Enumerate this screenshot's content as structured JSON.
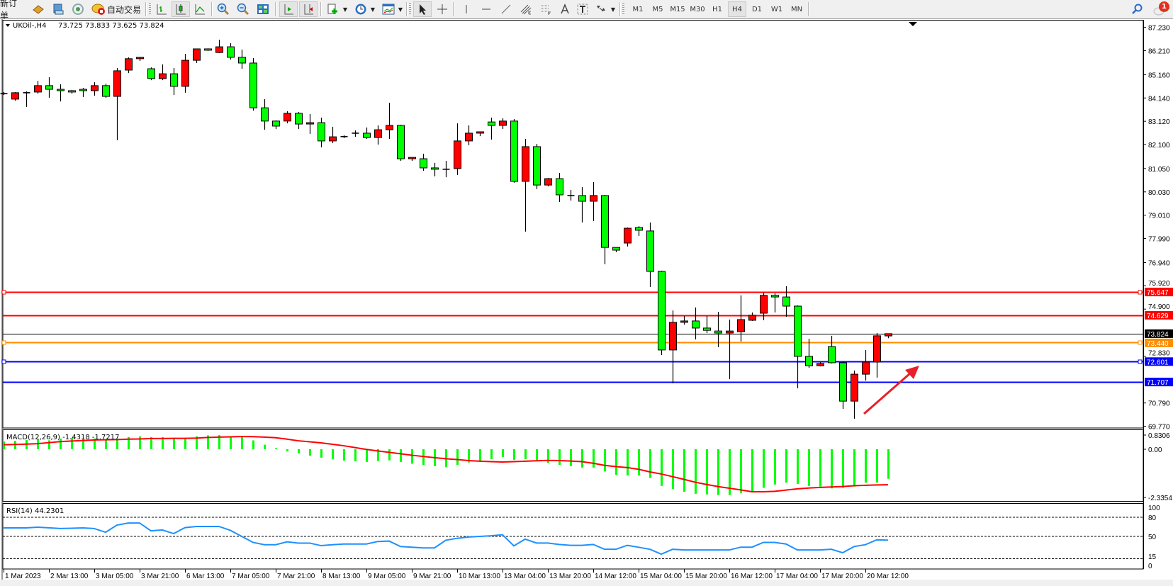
{
  "toolbar": {
    "new_order": "新订单",
    "auto_trading": "自动交易",
    "timeframes": [
      "M1",
      "M5",
      "M15",
      "M30",
      "H1",
      "H4",
      "D1",
      "W1",
      "MN"
    ],
    "active_timeframe": "H4",
    "notification_count": "1",
    "icons": [
      "navigator-book-icon",
      "terminal-icon",
      "signals-icon",
      "auto-trading-icon",
      "bar-chart-icon",
      "candlestick-icon",
      "line-chart-icon",
      "zoom-in-icon",
      "zoom-out-icon",
      "tile-windows-icon",
      "auto-scroll-icon",
      "chart-shift-icon",
      "indicators-icon",
      "periods-clock-icon",
      "templates-icon",
      "cursor-icon",
      "crosshair-icon",
      "vertical-line-icon",
      "horizontal-line-icon",
      "trendline-icon",
      "fibonacci-channel-icon",
      "fibonacci-retracement-icon",
      "text-icon",
      "text-label-icon",
      "arrows-icon",
      "search-icon",
      "chat-icon"
    ]
  },
  "chart": {
    "symbol_label": "UKOil-,H4",
    "ohlc_label": "73.725 73.833 73.625 73.824"
  },
  "colors": {
    "bull_candle": "#ff0000",
    "bear_candle": "#00ff00",
    "candle_outline": "#000000",
    "macd_histogram": "#00ff00",
    "macd_signal": "#ff0000",
    "rsi_line": "#1e90ff",
    "arrow": "#e8202a"
  },
  "chart_data": {
    "type": "candlestick",
    "symbol": "UKOil-",
    "timeframe": "H4",
    "candle_fields": [
      "open",
      "high",
      "low",
      "close"
    ],
    "candles": [
      [
        84.33,
        84.4,
        84.27,
        84.33
      ],
      [
        84.09,
        84.4,
        84.02,
        84.37
      ],
      [
        84.37,
        84.43,
        83.75,
        84.37
      ],
      [
        84.4,
        84.89,
        84.33,
        84.68
      ],
      [
        84.68,
        85.05,
        84.15,
        84.52
      ],
      [
        84.52,
        84.74,
        83.99,
        84.46
      ],
      [
        84.46,
        84.49,
        84.33,
        84.4
      ],
      [
        84.52,
        84.58,
        84.18,
        84.46
      ],
      [
        84.46,
        84.83,
        84.24,
        84.68
      ],
      [
        84.68,
        84.77,
        84.15,
        84.21
      ],
      [
        84.21,
        85.45,
        82.29,
        85.33
      ],
      [
        85.36,
        85.92,
        85.23,
        85.86
      ],
      [
        85.86,
        85.94,
        85.76,
        85.92
      ],
      [
        85.42,
        85.48,
        84.92,
        84.99
      ],
      [
        84.99,
        85.61,
        84.92,
        85.2
      ],
      [
        85.2,
        85.45,
        84.27,
        84.65
      ],
      [
        84.65,
        86.07,
        84.37,
        85.79
      ],
      [
        85.79,
        86.29,
        85.67,
        86.29
      ],
      [
        86.29,
        86.31,
        86.2,
        86.23
      ],
      [
        86.13,
        86.69,
        86.1,
        86.38
      ],
      [
        86.38,
        86.54,
        85.82,
        85.92
      ],
      [
        85.92,
        86.26,
        85.42,
        85.67
      ],
      [
        85.67,
        85.89,
        83.59,
        83.71
      ],
      [
        83.71,
        84.09,
        82.75,
        83.13
      ],
      [
        83.13,
        83.16,
        82.78,
        82.91
      ],
      [
        83.13,
        83.56,
        83.03,
        83.47
      ],
      [
        83.47,
        83.53,
        82.78,
        83.0
      ],
      [
        83.0,
        83.44,
        82.57,
        83.06
      ],
      [
        83.06,
        83.28,
        81.98,
        82.26
      ],
      [
        82.26,
        82.88,
        82.16,
        82.44
      ],
      [
        82.45,
        82.51,
        82.38,
        82.43
      ],
      [
        82.6,
        82.72,
        82.44,
        82.6
      ],
      [
        82.6,
        82.85,
        82.35,
        82.41
      ],
      [
        82.41,
        82.94,
        82.1,
        82.75
      ],
      [
        82.75,
        83.93,
        82.35,
        82.94
      ],
      [
        82.94,
        82.97,
        81.39,
        81.48
      ],
      [
        81.48,
        81.54,
        81.39,
        81.54
      ],
      [
        81.48,
        81.7,
        80.95,
        81.08
      ],
      [
        81.08,
        81.3,
        80.71,
        81.02
      ],
      [
        81.02,
        81.39,
        80.67,
        81.02
      ],
      [
        81.05,
        83.03,
        80.77,
        82.26
      ],
      [
        82.26,
        82.94,
        82.07,
        82.6
      ],
      [
        82.6,
        82.66,
        82.47,
        82.66
      ],
      [
        83.09,
        83.28,
        82.32,
        82.94
      ],
      [
        82.94,
        83.25,
        82.78,
        83.13
      ],
      [
        83.13,
        83.22,
        80.43,
        80.49
      ],
      [
        80.49,
        82.35,
        78.29,
        82.01
      ],
      [
        82.01,
        82.13,
        80.15,
        80.33
      ],
      [
        80.33,
        80.64,
        80.27,
        80.61
      ],
      [
        80.61,
        80.86,
        79.59,
        79.9
      ],
      [
        79.87,
        80.12,
        79.65,
        79.87
      ],
      [
        79.87,
        80.24,
        78.69,
        79.62
      ],
      [
        79.62,
        80.46,
        78.75,
        79.87
      ],
      [
        79.87,
        79.9,
        76.86,
        77.6
      ],
      [
        77.6,
        77.6,
        77.39,
        77.48
      ],
      [
        77.79,
        78.47,
        77.64,
        78.44
      ],
      [
        78.47,
        78.53,
        78.1,
        78.35
      ],
      [
        78.32,
        78.69,
        75.87,
        76.55
      ],
      [
        76.55,
        76.58,
        72.89,
        73.11
      ],
      [
        73.11,
        74.84,
        71.65,
        74.32
      ],
      [
        74.32,
        74.6,
        74.22,
        74.38
      ],
      [
        74.38,
        74.97,
        73.57,
        74.07
      ],
      [
        74.07,
        74.6,
        73.85,
        73.97
      ],
      [
        73.94,
        74.78,
        73.23,
        73.85
      ],
      [
        73.85,
        74.44,
        71.83,
        73.94
      ],
      [
        73.91,
        75.5,
        73.48,
        74.44
      ],
      [
        74.41,
        74.75,
        74.38,
        74.63
      ],
      [
        74.72,
        75.62,
        74.41,
        75.5
      ],
      [
        75.5,
        75.59,
        74.75,
        75.43
      ],
      [
        75.43,
        75.9,
        74.56,
        75.03
      ],
      [
        75.03,
        75.06,
        71.43,
        72.83
      ],
      [
        72.83,
        73.6,
        72.33,
        72.42
      ],
      [
        72.42,
        72.58,
        72.39,
        72.52
      ],
      [
        73.26,
        73.73,
        72.52,
        72.55
      ],
      [
        72.55,
        72.61,
        70.53,
        70.87
      ],
      [
        70.87,
        72.21,
        70.1,
        72.05
      ],
      [
        72.05,
        73.11,
        71.77,
        72.58
      ],
      [
        72.58,
        73.85,
        71.9,
        73.73
      ],
      [
        73.725,
        73.833,
        73.625,
        73.824
      ]
    ],
    "price_range": [
      69.77,
      87.23
    ],
    "price_ticks": [
      "87.230",
      "86.210",
      "85.160",
      "84.140",
      "83.120",
      "82.100",
      "81.050",
      "80.030",
      "79.010",
      "77.990",
      "76.940",
      "75.920",
      "74.900",
      "72.830",
      "70.790",
      "69.770"
    ],
    "current_price": {
      "value": 73.824,
      "label": "73.824",
      "color": "#000000"
    },
    "horizontal_lines": [
      {
        "value": 75.647,
        "label": "75.647",
        "color": "#ff0000",
        "selected": true
      },
      {
        "value": 74.629,
        "label": "74.629",
        "color": "#ff0000",
        "selected": false
      },
      {
        "value": 73.44,
        "label": "73.440",
        "color": "#ff8c00",
        "selected": true
      },
      {
        "value": 72.601,
        "label": "72.601",
        "color": "#0000ff",
        "selected": true
      },
      {
        "value": 71.707,
        "label": "71.707",
        "color": "#0000ff",
        "selected": false
      }
    ],
    "time_labels": [
      {
        "bar": 0,
        "label": "1 Mar 2023"
      },
      {
        "bar": 4,
        "label": "2 Mar 13:00"
      },
      {
        "bar": 8,
        "label": "3 Mar 05:00"
      },
      {
        "bar": 12,
        "label": "3 Mar 21:00"
      },
      {
        "bar": 16,
        "label": "6 Mar 13:00"
      },
      {
        "bar": 20,
        "label": "7 Mar 05:00"
      },
      {
        "bar": 24,
        "label": "7 Mar 21:00"
      },
      {
        "bar": 28,
        "label": "8 Mar 13:00"
      },
      {
        "bar": 32,
        "label": "9 Mar 05:00"
      },
      {
        "bar": 36,
        "label": "9 Mar 21:00"
      },
      {
        "bar": 40,
        "label": "10 Mar 13:00"
      },
      {
        "bar": 44,
        "label": "13 Mar 04:00"
      },
      {
        "bar": 48,
        "label": "13 Mar 20:00"
      },
      {
        "bar": 52,
        "label": "14 Mar 12:00"
      },
      {
        "bar": 56,
        "label": "15 Mar 04:00"
      },
      {
        "bar": 60,
        "label": "15 Mar 20:00"
      },
      {
        "bar": 64,
        "label": "16 Mar 12:00"
      },
      {
        "bar": 68,
        "label": "17 Mar 04:00"
      },
      {
        "bar": 72,
        "label": "17 Mar 20:00"
      },
      {
        "bar": 76,
        "label": "20 Mar 12:00"
      }
    ],
    "macd": {
      "label": "MACD(12,26,9) -1.4318 -1.7217",
      "range": [
        -2.3354,
        0.8306
      ],
      "axis_labels": [
        {
          "value": 0.8306,
          "label": "0.8306"
        },
        {
          "value": 0,
          "label": "0.00"
        },
        {
          "value": -2.3354,
          "label": "-2.3354"
        }
      ],
      "histogram": [
        0.37,
        0.41,
        0.45,
        0.49,
        0.43,
        0.52,
        0.54,
        0.49,
        0.52,
        0.45,
        0.49,
        0.59,
        0.62,
        0.59,
        0.59,
        0.54,
        0.54,
        0.62,
        0.67,
        0.69,
        0.59,
        0.62,
        0.43,
        0.22,
        0.05,
        -0.1,
        -0.2,
        -0.31,
        -0.41,
        -0.49,
        -0.55,
        -0.58,
        -0.62,
        -0.57,
        -0.54,
        -0.62,
        -0.7,
        -0.76,
        -0.82,
        -0.87,
        -0.76,
        -0.64,
        -0.57,
        -0.48,
        -0.38,
        -0.51,
        -0.48,
        -0.57,
        -0.66,
        -0.76,
        -0.82,
        -0.89,
        -0.89,
        -1.08,
        -1.24,
        -1.27,
        -1.27,
        -1.39,
        -1.78,
        -1.93,
        -2.06,
        -2.16,
        -2.19,
        -2.22,
        -2.22,
        -2.12,
        -2.06,
        -1.87,
        -1.71,
        -1.62,
        -1.68,
        -1.78,
        -1.81,
        -1.9,
        -1.87,
        -1.81,
        -1.62,
        -1.62,
        -1.4318
      ],
      "signal": [
        0.22,
        0.23,
        0.25,
        0.27,
        0.32,
        0.37,
        0.4,
        0.42,
        0.45,
        0.46,
        0.47,
        0.49,
        0.5,
        0.52,
        0.52,
        0.53,
        0.53,
        0.54,
        0.57,
        0.59,
        0.6,
        0.62,
        0.61,
        0.59,
        0.56,
        0.49,
        0.41,
        0.36,
        0.31,
        0.24,
        0.17,
        0.08,
        -0.01,
        -0.08,
        -0.15,
        -0.22,
        -0.29,
        -0.35,
        -0.41,
        -0.46,
        -0.5,
        -0.55,
        -0.58,
        -0.6,
        -0.62,
        -0.6,
        -0.58,
        -0.56,
        -0.54,
        -0.55,
        -0.57,
        -0.6,
        -0.68,
        -0.78,
        -0.84,
        -0.89,
        -0.97,
        -1.1,
        -1.2,
        -1.33,
        -1.46,
        -1.6,
        -1.71,
        -1.81,
        -1.89,
        -1.97,
        -2.06,
        -2.06,
        -2.04,
        -1.98,
        -1.92,
        -1.88,
        -1.85,
        -1.83,
        -1.81,
        -1.77,
        -1.75,
        -1.73,
        -1.7217
      ]
    },
    "rsi": {
      "label": "RSI(14) 44.2301",
      "range": [
        0,
        100
      ],
      "levels": [
        80,
        50,
        15
      ],
      "axis_labels": [
        {
          "value": 100,
          "label": "100"
        },
        {
          "value": 80,
          "label": "80"
        },
        {
          "value": 50,
          "label": "50"
        },
        {
          "value": 15,
          "label": "15"
        },
        {
          "value": 0,
          "label": "0"
        }
      ],
      "values": [
        63.4,
        63.4,
        63.4,
        64.5,
        63.5,
        62.3,
        62.8,
        63.4,
        62.3,
        56.5,
        67.7,
        71,
        71,
        58.7,
        60.1,
        54.4,
        63.8,
        65.6,
        65.6,
        65.6,
        59.5,
        50,
        40.6,
        37,
        37,
        41.5,
        39.5,
        39.5,
        35.5,
        37,
        38,
        38,
        38.1,
        42,
        42.7,
        34.1,
        33,
        32,
        32,
        44,
        47,
        49,
        50,
        51,
        52.6,
        35.2,
        45.7,
        39.6,
        39.6,
        37.4,
        36,
        36,
        37.4,
        29.8,
        29.8,
        36,
        33,
        29.8,
        22.2,
        29.8,
        28.7,
        28.7,
        28.7,
        28.7,
        28.7,
        33.1,
        33.1,
        40.6,
        40.6,
        38.1,
        28.7,
        28.7,
        28.7,
        29.8,
        24.4,
        34.1,
        37,
        44.6,
        44.2301
      ]
    },
    "annotations": [
      {
        "type": "arrow",
        "direction": "up-right",
        "color": "#e8202a"
      }
    ]
  }
}
